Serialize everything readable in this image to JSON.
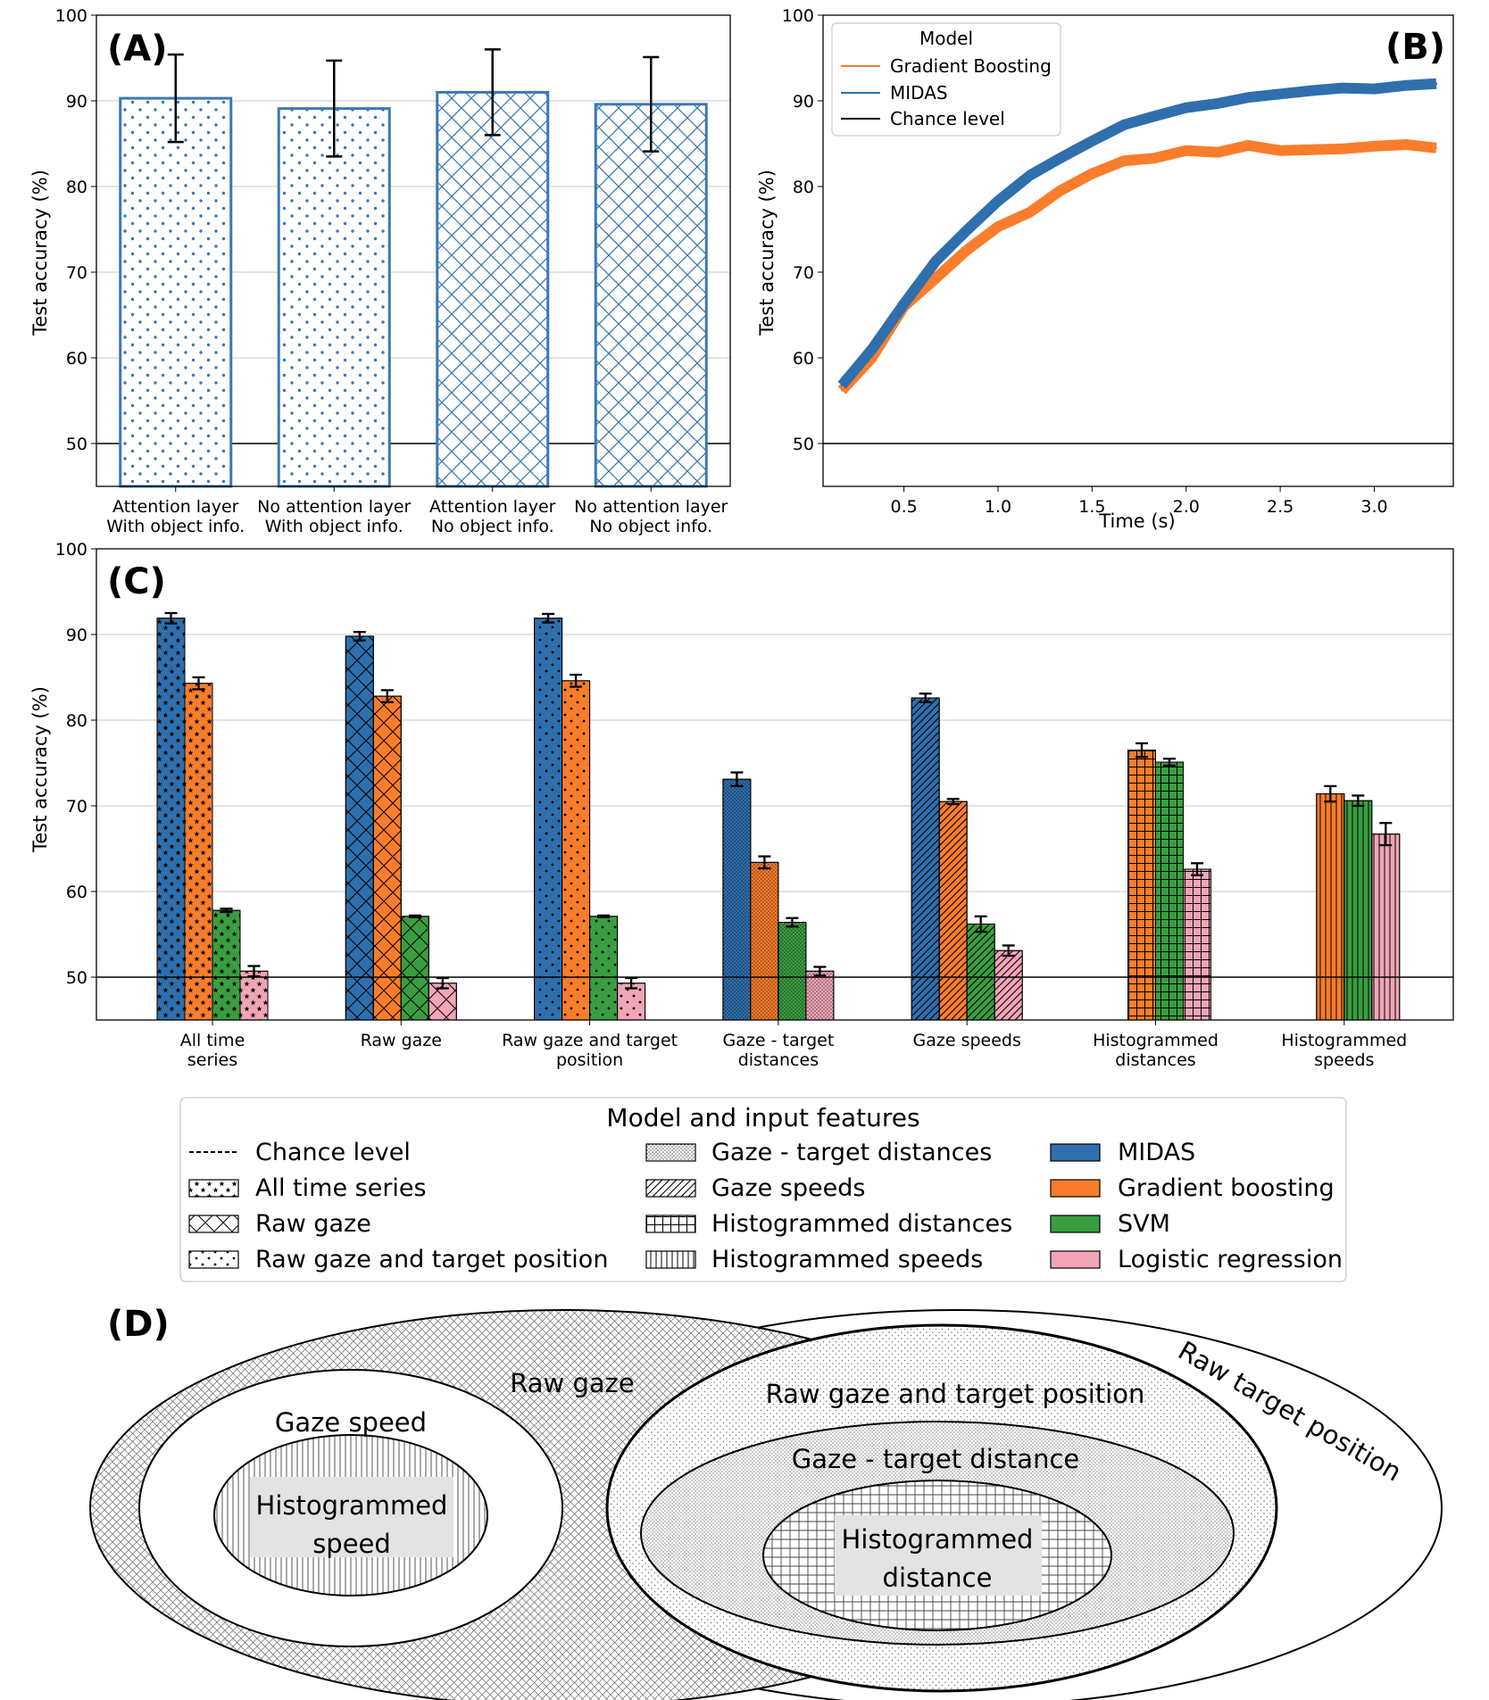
{
  "colors": {
    "midas": "#2f6fad",
    "gradient_boosting": "#f97d2b",
    "svm": "#3a9e41",
    "logistic_regression": "#f1a5b6",
    "outline_blue": "#3b78b4",
    "chance": "#000000"
  },
  "chart_data": [
    {
      "id": "A",
      "type": "bar",
      "panel_label": "(A)",
      "categories": [
        [
          "Attention layer",
          "With object info."
        ],
        [
          "No attention layer",
          "With object info."
        ],
        [
          "Attention layer",
          "No object info."
        ],
        [
          "No attention layer",
          "No object info."
        ]
      ],
      "patterns": [
        "dots",
        "dots",
        "crosshatch",
        "crosshatch"
      ],
      "values": [
        90.3,
        89.1,
        91.0,
        89.6
      ],
      "errors": [
        5.1,
        5.6,
        5.0,
        5.5
      ],
      "ylabel": "Test accuracy (%)",
      "ylim": [
        45,
        100
      ],
      "yticks": [
        "50",
        "60",
        "70",
        "80",
        "90",
        "100"
      ],
      "chance_level": 50
    },
    {
      "id": "B",
      "type": "line",
      "panel_label": "(B)",
      "xlabel": "Time (s)",
      "ylabel": "Test accuracy (%)",
      "xlim": [
        0.07,
        3.42
      ],
      "ylim": [
        45,
        100
      ],
      "xticks": [
        "0.5",
        "1.0",
        "1.5",
        "2.0",
        "2.5",
        "3.0"
      ],
      "yticks": [
        "50",
        "60",
        "70",
        "80",
        "90",
        "100"
      ],
      "legend_title": "Model",
      "x": [
        0.17,
        0.33,
        0.5,
        0.67,
        0.83,
        1.0,
        1.17,
        1.33,
        1.5,
        1.67,
        1.83,
        2.0,
        2.17,
        2.33,
        2.5,
        2.67,
        2.83,
        3.0,
        3.17,
        3.33
      ],
      "series": [
        {
          "name": "Gradient Boosting",
          "color_key": "gradient_boosting",
          "values": [
            56.2,
            60.0,
            66.0,
            69.3,
            72.5,
            75.3,
            77.0,
            79.5,
            81.5,
            83.0,
            83.3,
            84.2,
            84.0,
            84.8,
            84.2,
            84.3,
            84.4,
            84.7,
            84.9,
            84.5
          ]
        },
        {
          "name": "MIDAS",
          "color_key": "midas",
          "values": [
            56.8,
            61.0,
            66.3,
            71.3,
            74.8,
            78.3,
            81.3,
            83.3,
            85.3,
            87.2,
            88.2,
            89.2,
            89.7,
            90.4,
            90.8,
            91.2,
            91.5,
            91.4,
            91.8,
            92.0
          ]
        },
        {
          "name": "Chance level",
          "color_key": "chance",
          "constant": 50
        }
      ]
    },
    {
      "id": "C",
      "type": "bar",
      "panel_label": "(C)",
      "ylabel": "Test accuracy (%)",
      "ylim": [
        45,
        100
      ],
      "yticks": [
        "50",
        "60",
        "70",
        "80",
        "90",
        "100"
      ],
      "chance_level": 50,
      "categories": [
        [
          "All time",
          "series"
        ],
        [
          "Raw gaze"
        ],
        [
          "Raw gaze and target",
          "position"
        ],
        [
          "Gaze - target",
          "distances"
        ],
        [
          "Gaze speeds"
        ],
        [
          "Histogrammed",
          "distances"
        ],
        [
          "Histogrammed",
          "speeds"
        ]
      ],
      "category_patterns": [
        "stars",
        "crosshatch",
        "dots",
        "finedots",
        "diagonal",
        "grid",
        "vertical"
      ],
      "series": [
        {
          "name": "MIDAS",
          "color_key": "midas",
          "values": [
            91.9,
            89.8,
            91.9,
            73.1,
            82.6,
            null,
            null
          ],
          "errors": [
            0.6,
            0.5,
            0.5,
            0.8,
            0.5,
            null,
            null
          ]
        },
        {
          "name": "Gradient boosting",
          "color_key": "gradient_boosting",
          "values": [
            84.3,
            82.8,
            84.6,
            63.4,
            70.5,
            76.5,
            71.4
          ],
          "errors": [
            0.7,
            0.7,
            0.7,
            0.7,
            0.3,
            0.8,
            0.9
          ]
        },
        {
          "name": "SVM",
          "color_key": "svm",
          "values": [
            57.8,
            57.1,
            57.1,
            56.4,
            56.2,
            75.1,
            70.6
          ],
          "errors": [
            0.2,
            0.1,
            0.1,
            0.5,
            0.9,
            0.4,
            0.6
          ]
        },
        {
          "name": "Logistic regression",
          "color_key": "logistic_regression",
          "values": [
            50.7,
            49.3,
            49.3,
            50.7,
            53.1,
            62.6,
            66.7
          ],
          "errors": [
            0.6,
            0.6,
            0.6,
            0.5,
            0.6,
            0.7,
            1.3
          ]
        }
      ],
      "legend_title": "Model and input features",
      "legend_col1": [
        {
          "label": "Chance level",
          "swatch": "dashed-line"
        },
        {
          "label": "All time series",
          "swatch": "stars"
        },
        {
          "label": "Raw gaze",
          "swatch": "crosshatch"
        },
        {
          "label": "Raw gaze and target position",
          "swatch": "dots"
        }
      ],
      "legend_col2": [
        {
          "label": "Gaze - target distances",
          "swatch": "finedots"
        },
        {
          "label": "Gaze speeds",
          "swatch": "diagonal"
        },
        {
          "label": "Histogrammed distances",
          "swatch": "grid"
        },
        {
          "label": "Histogrammed speeds",
          "swatch": "vertical"
        }
      ],
      "legend_col3": [
        {
          "label": "MIDAS",
          "color_key": "midas"
        },
        {
          "label": "Gradient boosting",
          "color_key": "gradient_boosting"
        },
        {
          "label": "SVM",
          "color_key": "svm"
        },
        {
          "label": "Logistic regression",
          "color_key": "logistic_regression"
        }
      ]
    }
  ],
  "venn": {
    "panel_label": "(D)",
    "raw_gaze": "Raw gaze",
    "gaze_speed": "Gaze speed",
    "histogrammed_speed": [
      "Histogrammed",
      "speed"
    ],
    "raw_gaze_target": "Raw gaze and target position",
    "gaze_target_distance": "Gaze - target distance",
    "histogrammed_distance": [
      "Histogrammed",
      "distance"
    ],
    "raw_target_position": "Raw target position"
  }
}
